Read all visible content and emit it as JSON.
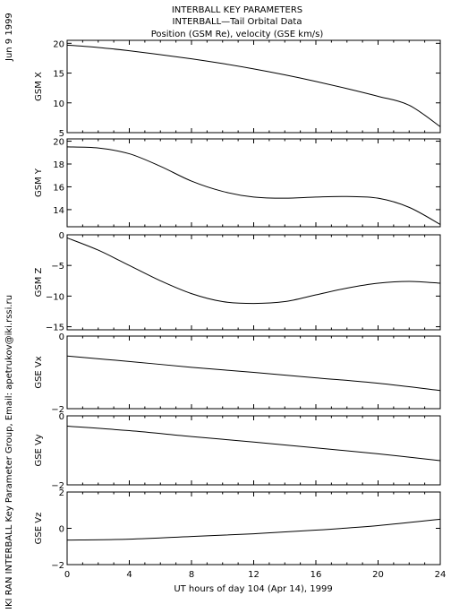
{
  "header": {
    "title_line1": "INTERBALL KEY PARAMETERS",
    "title_line2": "INTERBALL—Tail Orbital Data",
    "title_line3": "Position (GSM Re), velocity (GSE km/s)",
    "date_stamp": "Jun  9 1999",
    "credit": "IKI RAN INTERBALL Key Parameter Group, Email: apetrukov@iki.rssi.ru"
  },
  "chart_data": {
    "type": "line",
    "xlabel": "UT hours of day 104 (Apr 14), 1999",
    "xlim": [
      0,
      24
    ],
    "xticks": [
      "0",
      "4",
      "8",
      "12",
      "16",
      "20",
      "24"
    ],
    "panels": [
      {
        "ylabel": "GSM X",
        "ylim": [
          5,
          20.5
        ],
        "yticks": [
          {
            "v": 5,
            "label": "5"
          },
          {
            "v": 10,
            "label": "10"
          },
          {
            "v": 15,
            "label": "15"
          },
          {
            "v": 20,
            "label": "20"
          }
        ],
        "x": [
          0,
          2,
          4,
          6,
          8,
          10,
          12,
          14,
          16,
          18,
          20,
          22,
          24
        ],
        "y": [
          19.7,
          19.3,
          18.75,
          18.1,
          17.4,
          16.6,
          15.7,
          14.7,
          13.6,
          12.4,
          11.1,
          9.6,
          6.0
        ]
      },
      {
        "ylabel": "GSM Y",
        "ylim": [
          12.5,
          20.2
        ],
        "yticks": [
          {
            "v": 14,
            "label": "14"
          },
          {
            "v": 16,
            "label": "16"
          },
          {
            "v": 18,
            "label": "18"
          },
          {
            "v": 20,
            "label": "20"
          }
        ],
        "x": [
          0,
          2,
          4,
          6,
          8,
          10,
          12,
          14,
          16,
          18,
          20,
          22,
          24
        ],
        "y": [
          19.5,
          19.4,
          18.9,
          17.8,
          16.5,
          15.6,
          15.1,
          15.0,
          15.1,
          15.15,
          15.0,
          14.2,
          12.7
        ]
      },
      {
        "ylabel": "GSM Z",
        "ylim": [
          -15.5,
          0
        ],
        "yticks": [
          {
            "v": 0,
            "label": "0"
          },
          {
            "v": -5,
            "label": "−5"
          },
          {
            "v": -10,
            "label": "−10"
          },
          {
            "v": -15,
            "label": "−15"
          }
        ],
        "x": [
          0,
          2,
          4,
          6,
          8,
          10,
          12,
          14,
          16,
          18,
          20,
          22,
          24
        ],
        "y": [
          -0.5,
          -2.5,
          -5.0,
          -7.5,
          -9.6,
          -10.9,
          -11.2,
          -10.9,
          -9.8,
          -8.7,
          -7.9,
          -7.6,
          -7.9
        ]
      },
      {
        "ylabel": "GSE Vx",
        "ylim": [
          -2,
          0
        ],
        "yticks": [
          {
            "v": 0,
            "label": "0"
          },
          {
            "v": -2,
            "label": "−2"
          }
        ],
        "x": [
          0,
          4,
          8,
          12,
          16,
          20,
          24
        ],
        "y": [
          -0.55,
          -0.7,
          -0.86,
          -1.0,
          -1.15,
          -1.3,
          -1.5
        ]
      },
      {
        "ylabel": "GSE Vy",
        "ylim": [
          -2,
          0
        ],
        "yticks": [
          {
            "v": 0,
            "label": "0"
          },
          {
            "v": -2,
            "label": "−2"
          }
        ],
        "x": [
          0,
          4,
          8,
          12,
          16,
          20,
          24
        ],
        "y": [
          -0.3,
          -0.43,
          -0.6,
          -0.76,
          -0.93,
          -1.1,
          -1.3
        ]
      },
      {
        "ylabel": "GSE Vz",
        "ylim": [
          -2,
          2
        ],
        "yticks": [
          {
            "v": 2,
            "label": "2"
          },
          {
            "v": 0,
            "label": "0"
          },
          {
            "v": -2,
            "label": "−2"
          }
        ],
        "x": [
          0,
          4,
          8,
          12,
          16,
          20,
          24
        ],
        "y": [
          -0.65,
          -0.6,
          -0.45,
          -0.3,
          -0.1,
          0.15,
          0.5
        ]
      }
    ]
  }
}
